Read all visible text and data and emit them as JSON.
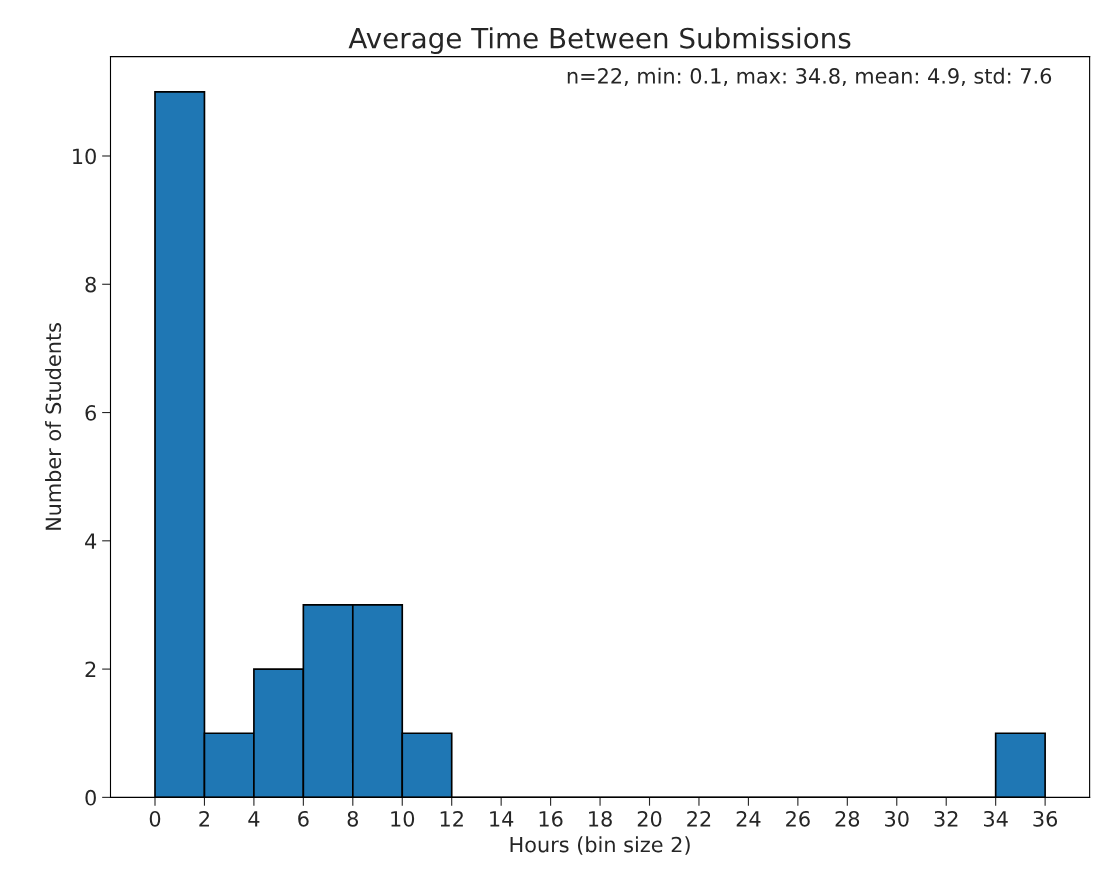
{
  "chart_data": {
    "type": "histogram",
    "title": "Average Time Between Submissions",
    "xlabel": "Hours (bin size 2)",
    "ylabel": "Number of Students",
    "annotations": [
      "n=22, min: 0.1, max: 34.8, mean: 4.9, std: 7.6"
    ],
    "bins": [
      0,
      2,
      4,
      6,
      8,
      10,
      12,
      14,
      16,
      18,
      20,
      22,
      24,
      26,
      28,
      30,
      32,
      34,
      36
    ],
    "values": [
      11,
      1,
      2,
      3,
      3,
      1,
      0,
      0,
      0,
      0,
      0,
      0,
      0,
      0,
      0,
      0,
      0,
      1
    ],
    "color": "#1f77b4",
    "xlim": [
      -1.8,
      37.8
    ],
    "ylim": [
      0,
      11.55
    ],
    "xticks": [
      0,
      2,
      4,
      6,
      8,
      10,
      12,
      14,
      16,
      18,
      20,
      22,
      24,
      26,
      28,
      30,
      32,
      34,
      36
    ],
    "yticks": [
      0,
      2,
      4,
      6,
      8,
      10
    ],
    "grid": false
  }
}
